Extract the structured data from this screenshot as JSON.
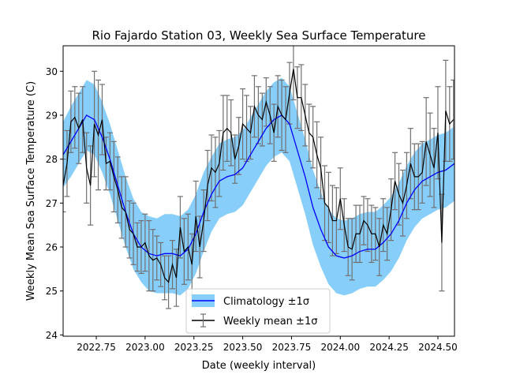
{
  "chart_data": {
    "type": "line",
    "title": "Rio Fajardo Station 03, Weekly Sea Surface Temperature",
    "xlabel": "Date (weekly interval)",
    "ylabel": "Weekly Mean Sea Surface Temperature (C)",
    "xlim": [
      2022.58,
      2024.585
    ],
    "ylim": [
      23.97,
      30.58
    ],
    "xticks": [
      2022.75,
      2023.0,
      2023.25,
      2023.5,
      2023.75,
      2024.0,
      2024.25,
      2024.5
    ],
    "xtick_labels": [
      "2022.75",
      "2023.00",
      "2023.25",
      "2023.50",
      "2023.75",
      "2024.00",
      "2024.25",
      "2024.50"
    ],
    "yticks": [
      24,
      25,
      26,
      27,
      28,
      29,
      30
    ],
    "ytick_labels": [
      "24",
      "25",
      "26",
      "27",
      "28",
      "29",
      "30"
    ],
    "grid": false,
    "legend_position": "lower-center",
    "legend": [
      {
        "label": "Climatology ±1σ",
        "kind": "line-with-band"
      },
      {
        "label": "Weekly mean ±1σ",
        "kind": "errorbar-line"
      }
    ],
    "colors": {
      "climatology_line": "#0000ff",
      "climatology_band": "#87cefa",
      "weekly_line": "#000000",
      "errorbar": "#707070"
    },
    "series": [
      {
        "name": "Climatology ±1σ",
        "x": [
          2022.58,
          2022.62,
          2022.66,
          2022.7,
          2022.74,
          2022.78,
          2022.82,
          2022.86,
          2022.9,
          2022.94,
          2022.98,
          2023.02,
          2023.06,
          2023.1,
          2023.14,
          2023.18,
          2023.22,
          2023.26,
          2023.3,
          2023.34,
          2023.38,
          2023.42,
          2023.46,
          2023.5,
          2023.54,
          2023.58,
          2023.62,
          2023.66,
          2023.7,
          2023.74,
          2023.78,
          2023.82,
          2023.86,
          2023.9,
          2023.94,
          2023.98,
          2024.02,
          2024.06,
          2024.1,
          2024.14,
          2024.18,
          2024.22,
          2024.26,
          2024.3,
          2024.34,
          2024.38,
          2024.42,
          2024.46,
          2024.5,
          2024.54,
          2024.585
        ],
        "mean": [
          28.1,
          28.4,
          28.7,
          29.0,
          28.9,
          28.5,
          28.0,
          27.4,
          26.8,
          26.3,
          26.0,
          25.85,
          25.8,
          25.85,
          25.85,
          25.8,
          25.95,
          26.3,
          26.8,
          27.2,
          27.5,
          27.6,
          27.65,
          27.8,
          28.1,
          28.4,
          28.7,
          28.9,
          29.0,
          28.8,
          28.2,
          27.6,
          26.9,
          26.4,
          26.0,
          25.8,
          25.75,
          25.8,
          25.9,
          25.95,
          25.95,
          26.1,
          26.3,
          26.6,
          27.0,
          27.3,
          27.5,
          27.6,
          27.7,
          27.75,
          27.9
        ],
        "lower": [
          27.35,
          27.6,
          27.9,
          28.2,
          28.1,
          27.7,
          27.2,
          26.6,
          26.0,
          25.5,
          25.2,
          25.0,
          24.95,
          24.95,
          24.95,
          24.9,
          25.05,
          25.4,
          25.9,
          26.35,
          26.65,
          26.75,
          26.8,
          26.95,
          27.25,
          27.55,
          27.85,
          28.05,
          28.15,
          27.95,
          27.35,
          26.75,
          26.05,
          25.55,
          25.15,
          24.95,
          24.9,
          24.95,
          25.05,
          25.1,
          25.1,
          25.25,
          25.45,
          25.75,
          26.15,
          26.45,
          26.65,
          26.75,
          26.85,
          26.9,
          27.05
        ],
        "upper": [
          28.85,
          29.2,
          29.5,
          29.8,
          29.7,
          29.3,
          28.8,
          28.2,
          27.6,
          27.1,
          26.8,
          26.7,
          26.65,
          26.75,
          26.75,
          26.7,
          26.85,
          27.2,
          27.7,
          28.05,
          28.35,
          28.45,
          28.5,
          28.65,
          28.95,
          29.25,
          29.55,
          29.75,
          29.85,
          29.65,
          29.05,
          28.45,
          27.75,
          27.25,
          26.85,
          26.65,
          26.6,
          26.65,
          26.75,
          26.8,
          26.8,
          26.95,
          27.15,
          27.45,
          27.85,
          28.15,
          28.35,
          28.45,
          28.55,
          28.6,
          28.75
        ]
      },
      {
        "name": "Weekly mean ±1σ",
        "x": [
          2022.58,
          2022.6,
          2022.62,
          2022.64,
          2022.66,
          2022.68,
          2022.7,
          2022.72,
          2022.74,
          2022.76,
          2022.78,
          2022.8,
          2022.82,
          2022.84,
          2022.86,
          2022.88,
          2022.9,
          2022.92,
          2022.94,
          2022.96,
          2022.98,
          2023.0,
          2023.02,
          2023.04,
          2023.06,
          2023.08,
          2023.1,
          2023.12,
          2023.14,
          2023.16,
          2023.18,
          2023.2,
          2023.22,
          2023.24,
          2023.26,
          2023.28,
          2023.3,
          2023.32,
          2023.34,
          2023.36,
          2023.38,
          2023.4,
          2023.42,
          2023.44,
          2023.46,
          2023.48,
          2023.5,
          2023.52,
          2023.54,
          2023.56,
          2023.58,
          2023.6,
          2023.62,
          2023.64,
          2023.66,
          2023.68,
          2023.7,
          2023.72,
          2023.74,
          2023.76,
          2023.78,
          2023.8,
          2023.82,
          2023.84,
          2023.86,
          2023.88,
          2023.9,
          2023.92,
          2023.94,
          2023.96,
          2023.98,
          2024.0,
          2024.02,
          2024.04,
          2024.06,
          2024.08,
          2024.1,
          2024.12,
          2024.14,
          2024.16,
          2024.18,
          2024.2,
          2024.22,
          2024.24,
          2024.26,
          2024.28,
          2024.3,
          2024.32,
          2024.34,
          2024.36,
          2024.38,
          2024.4,
          2024.42,
          2024.44,
          2024.46,
          2024.48,
          2024.5,
          2024.52,
          2024.54,
          2024.56,
          2024.58
        ],
        "values": [
          27.4,
          27.9,
          28.85,
          28.95,
          28.7,
          28.9,
          27.8,
          27.4,
          28.8,
          28.55,
          28.9,
          27.9,
          27.95,
          27.6,
          27.3,
          26.9,
          26.8,
          26.4,
          26.3,
          26.0,
          26.0,
          26.1,
          25.8,
          25.7,
          25.75,
          25.6,
          25.3,
          25.2,
          25.6,
          25.3,
          26.45,
          25.9,
          26.0,
          25.6,
          26.7,
          26.0,
          26.6,
          27.4,
          27.8,
          27.7,
          27.9,
          28.6,
          28.7,
          28.6,
          28.0,
          28.3,
          28.8,
          28.7,
          28.6,
          29.2,
          29.0,
          28.9,
          29.3,
          29.0,
          28.6,
          29.2,
          29.0,
          28.9,
          29.5,
          30.05,
          29.4,
          29.4,
          29.0,
          28.6,
          28.5,
          28.1,
          27.8,
          27.0,
          26.9,
          26.6,
          26.6,
          27.1,
          26.5,
          26.0,
          25.95,
          26.3,
          26.3,
          26.6,
          26.5,
          26.3,
          26.3,
          26.0,
          26.5,
          26.3,
          26.85,
          27.5,
          27.2,
          27.0,
          27.4,
          27.9,
          27.6,
          27.6,
          27.7,
          28.4,
          28.1,
          27.8,
          28.6,
          26.1,
          29.1,
          28.8,
          28.9
        ],
        "errors": [
          0.6,
          0.75,
          0.7,
          0.7,
          0.8,
          0.75,
          0.8,
          0.9,
          1.2,
          1.25,
          0.8,
          0.6,
          0.65,
          0.8,
          0.75,
          0.7,
          0.8,
          0.65,
          0.7,
          0.55,
          0.6,
          0.65,
          0.8,
          0.7,
          0.5,
          0.5,
          0.5,
          0.6,
          0.55,
          0.65,
          0.7,
          0.75,
          0.75,
          0.7,
          0.8,
          0.7,
          0.7,
          0.8,
          0.75,
          0.8,
          0.75,
          0.85,
          0.75,
          0.75,
          0.55,
          0.65,
          0.8,
          0.75,
          0.6,
          0.7,
          0.65,
          0.6,
          0.55,
          0.65,
          0.65,
          0.7,
          0.8,
          0.75,
          0.7,
          0.7,
          0.7,
          0.75,
          0.7,
          0.65,
          0.7,
          0.75,
          0.7,
          0.85,
          0.8,
          0.8,
          0.75,
          0.7,
          0.6,
          0.65,
          0.7,
          0.65,
          0.65,
          0.55,
          0.6,
          0.65,
          0.6,
          0.65,
          0.6,
          0.6,
          0.7,
          0.65,
          0.7,
          0.75,
          0.75,
          0.8,
          0.75,
          0.75,
          0.7,
          1.0,
          0.95,
          0.9,
          1.05,
          1.1,
          1.15,
          0.85,
          0.9
        ]
      }
    ]
  }
}
